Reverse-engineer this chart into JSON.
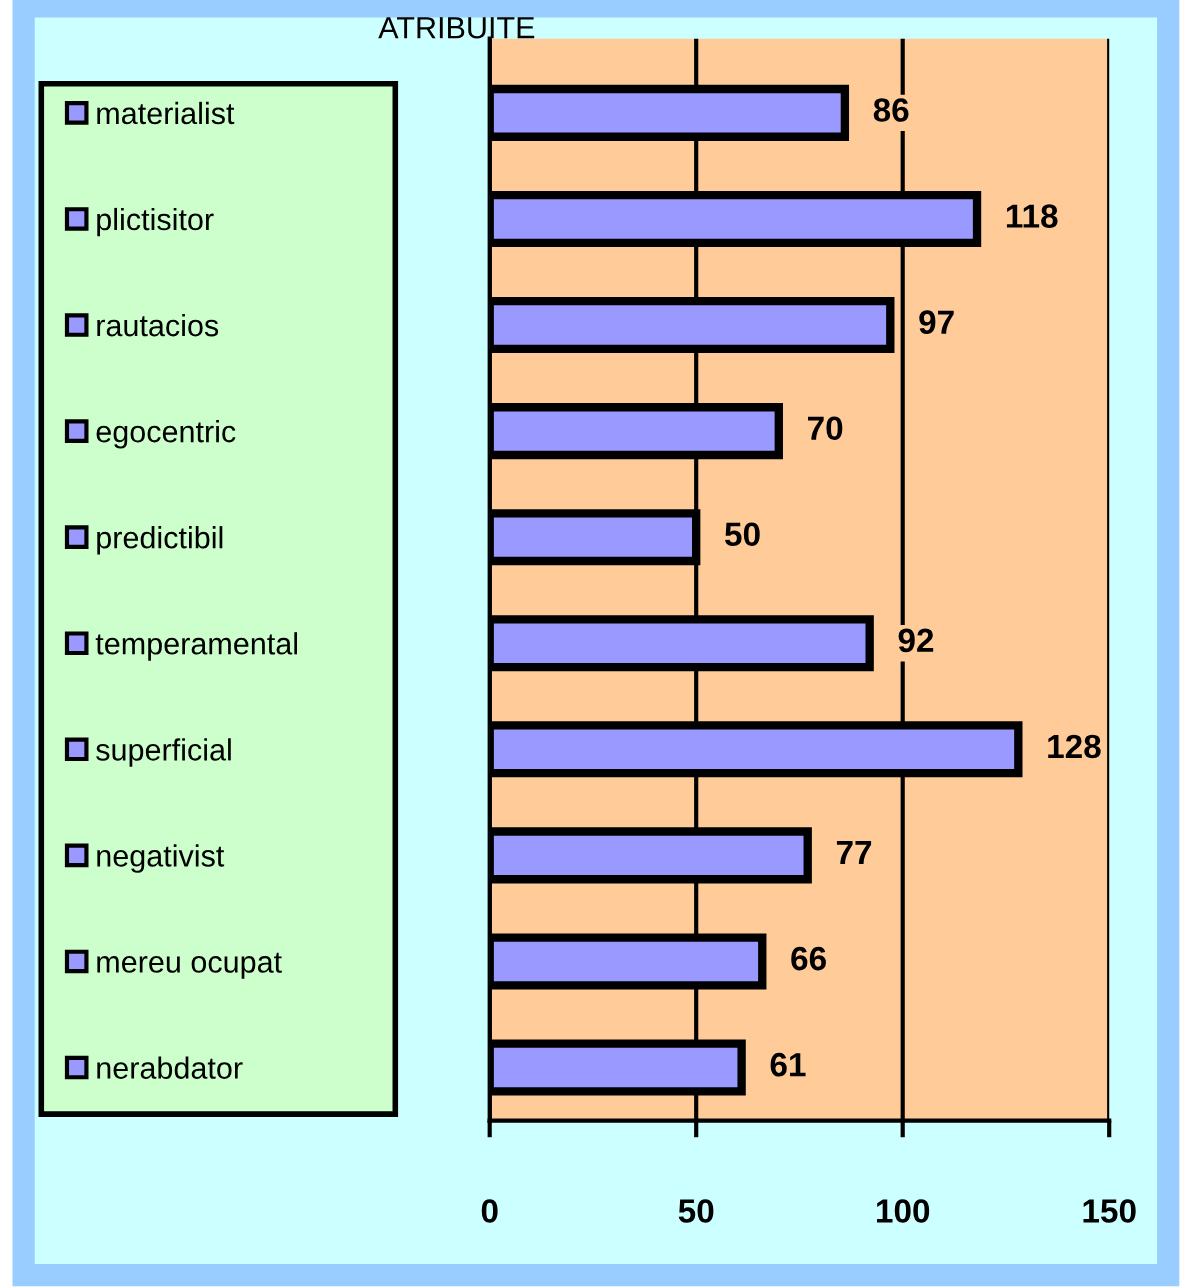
{
  "chart_data": {
    "type": "bar",
    "orientation": "horizontal",
    "title": "ATRIBUITE",
    "categories": [
      "materialist",
      "plictisitor",
      "rautacios",
      "egocentric",
      "predictibil",
      "temperamental",
      "superficial",
      "negativist",
      "mereu ocupat",
      "nerabdator"
    ],
    "values": [
      86,
      118,
      97,
      70,
      50,
      92,
      128,
      77,
      66,
      61
    ],
    "color": "#9999ff",
    "xlim": [
      0,
      150
    ],
    "xticks": [
      0,
      50,
      100,
      150
    ],
    "grid": "x",
    "data_labels": true
  }
}
